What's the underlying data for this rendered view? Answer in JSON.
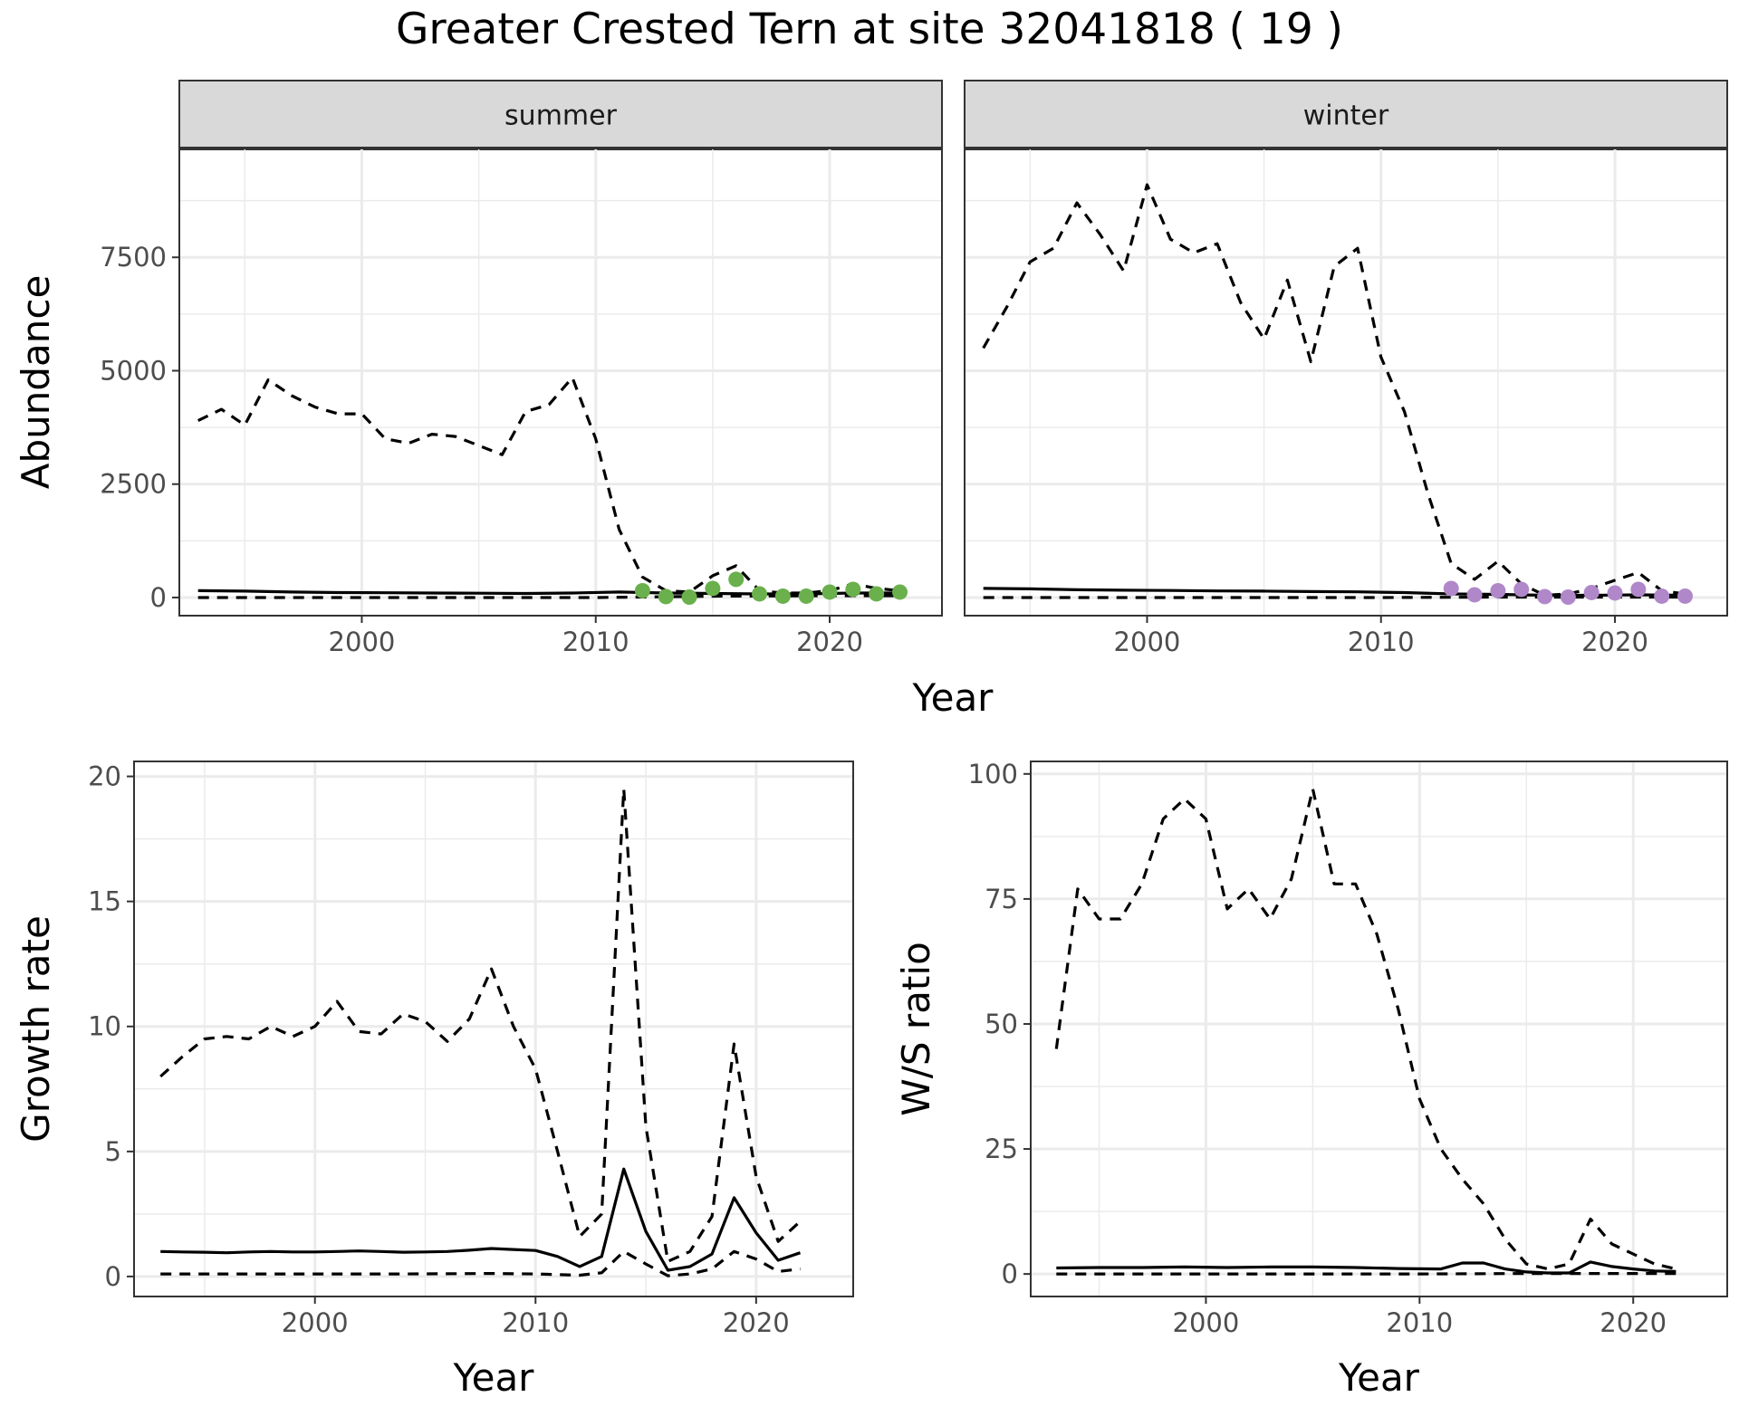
{
  "title": "Greater Crested Tern at site 32041818 ( 19 )",
  "colors": {
    "summer_points": "#6ab04c",
    "winter_points": "#b088c9",
    "lines": "#000000",
    "strip_bg": "#d9d9d9",
    "grid": "#ebebeb"
  },
  "chart_data": [
    {
      "type": "line",
      "panel": "summer",
      "strip": "summer",
      "xlabel": "Year",
      "ylabel": "Abundance",
      "xlim": [
        1992.2,
        2024.8
      ],
      "ylim": [
        -400,
        9900
      ],
      "x_ticks": [
        2000,
        2010,
        2020
      ],
      "y_ticks": [
        0,
        2500,
        5000,
        7500
      ],
      "grid": true,
      "series": [
        {
          "style": "solid",
          "x": [
            1993,
            1995,
            1997,
            1999,
            2001,
            2003,
            2005,
            2007,
            2009,
            2011,
            2013,
            2015,
            2017,
            2019,
            2021,
            2023
          ],
          "y": [
            150,
            140,
            120,
            110,
            105,
            100,
            95,
            90,
            100,
            120,
            100,
            90,
            80,
            80,
            100,
            100
          ]
        },
        {
          "style": "dashed",
          "x": [
            1993,
            1994,
            1995,
            1996,
            1997,
            1998,
            1999,
            2000,
            2001,
            2002,
            2003,
            2004,
            2005,
            2006,
            2007,
            2008,
            2009,
            2010,
            2011,
            2012,
            2013,
            2014,
            2015,
            2016,
            2017,
            2018,
            2019,
            2020,
            2021,
            2022,
            2023
          ],
          "y": [
            3900,
            4150,
            3800,
            4800,
            4450,
            4200,
            4050,
            4050,
            3500,
            3400,
            3600,
            3550,
            3350,
            3150,
            4100,
            4250,
            4850,
            3500,
            1500,
            450,
            150,
            120,
            480,
            700,
            150,
            100,
            100,
            150,
            300,
            200,
            150
          ]
        },
        {
          "style": "dashed",
          "x": [
            1993,
            2000,
            2010,
            2015,
            2020,
            2023
          ],
          "y": [
            0,
            0,
            0,
            30,
            40,
            40
          ]
        }
      ],
      "points": {
        "x": [
          2012,
          2013,
          2014,
          2015,
          2016,
          2017,
          2018,
          2019,
          2020,
          2021,
          2022,
          2023
        ],
        "y": [
          150,
          20,
          10,
          200,
          400,
          80,
          30,
          30,
          120,
          180,
          80,
          120
        ]
      }
    },
    {
      "type": "line",
      "panel": "winter",
      "strip": "winter",
      "xlabel": "Year",
      "ylabel": "",
      "xlim": [
        1992.2,
        2024.8
      ],
      "ylim": [
        -400,
        9900
      ],
      "x_ticks": [
        2000,
        2010,
        2020
      ],
      "y_ticks": [
        0,
        2500,
        5000,
        7500
      ],
      "grid": true,
      "series": [
        {
          "style": "solid",
          "x": [
            1993,
            1995,
            1997,
            1999,
            2001,
            2003,
            2005,
            2007,
            2009,
            2011,
            2013,
            2015,
            2017,
            2019,
            2021,
            2023
          ],
          "y": [
            200,
            190,
            170,
            160,
            155,
            145,
            140,
            130,
            125,
            110,
            80,
            70,
            50,
            50,
            60,
            50
          ]
        },
        {
          "style": "dashed",
          "x": [
            1993,
            1994,
            1995,
            1996,
            1997,
            1998,
            1999,
            2000,
            2001,
            2002,
            2003,
            2004,
            2005,
            2006,
            2007,
            2008,
            2009,
            2010,
            2011,
            2012,
            2013,
            2014,
            2015,
            2016,
            2017,
            2018,
            2019,
            2020,
            2021,
            2022,
            2023
          ],
          "y": [
            5500,
            6400,
            7400,
            7700,
            8700,
            8000,
            7200,
            9100,
            7900,
            7600,
            7800,
            6500,
            5700,
            7000,
            5200,
            7300,
            7700,
            5300,
            4100,
            2300,
            750,
            400,
            800,
            300,
            50,
            80,
            200,
            380,
            550,
            150,
            80
          ]
        },
        {
          "style": "dashed",
          "x": [
            1993,
            2000,
            2010,
            2015,
            2020,
            2023
          ],
          "y": [
            0,
            0,
            0,
            10,
            10,
            10
          ]
        }
      ],
      "points": {
        "x": [
          2013,
          2014,
          2015,
          2016,
          2017,
          2018,
          2019,
          2020,
          2021,
          2022,
          2023
        ],
        "y": [
          200,
          60,
          150,
          180,
          20,
          10,
          110,
          100,
          180,
          30,
          30
        ]
      }
    },
    {
      "type": "line",
      "panel": "growth",
      "xlabel": "Year",
      "ylabel": "Growth rate",
      "xlim": [
        1991.8,
        2024.4
      ],
      "ylim": [
        -0.8,
        20.6
      ],
      "x_ticks": [
        2000,
        2010,
        2020
      ],
      "y_ticks": [
        0,
        5,
        10,
        15,
        20
      ],
      "grid": true,
      "series": [
        {
          "style": "solid",
          "x": [
            1993,
            1994,
            1995,
            1996,
            1997,
            1998,
            1999,
            2000,
            2001,
            2002,
            2003,
            2004,
            2005,
            2006,
            2007,
            2008,
            2009,
            2010,
            2011,
            2012,
            2013,
            2014,
            2015,
            2016,
            2017,
            2018,
            2019,
            2020,
            2021,
            2022
          ],
          "y": [
            1.0,
            0.98,
            0.97,
            0.95,
            0.98,
            1.0,
            0.98,
            0.98,
            1.0,
            1.02,
            1.0,
            0.97,
            0.98,
            1.0,
            1.05,
            1.12,
            1.08,
            1.04,
            0.8,
            0.4,
            0.8,
            4.3,
            1.8,
            0.25,
            0.4,
            0.9,
            3.15,
            1.75,
            0.65,
            0.95
          ]
        },
        {
          "style": "dashed",
          "x": [
            1993,
            1994,
            1995,
            1996,
            1997,
            1998,
            1999,
            2000,
            2001,
            2002,
            2003,
            2004,
            2005,
            2006,
            2007,
            2008,
            2009,
            2010,
            2011,
            2012,
            2013,
            2014,
            2015,
            2016,
            2017,
            2018,
            2019,
            2020,
            2021,
            2022
          ],
          "y": [
            8.0,
            8.8,
            9.5,
            9.6,
            9.5,
            10.0,
            9.6,
            10.0,
            11.0,
            9.8,
            9.7,
            10.5,
            10.2,
            9.4,
            10.3,
            12.3,
            10.0,
            8.3,
            5.0,
            1.6,
            2.5,
            19.5,
            6.0,
            0.6,
            1.0,
            2.4,
            9.3,
            4.0,
            1.4,
            2.2
          ]
        },
        {
          "style": "dashed",
          "x": [
            1993,
            1996,
            2000,
            2004,
            2008,
            2010,
            2012,
            2013,
            2014,
            2015,
            2016,
            2017,
            2018,
            2019,
            2020,
            2021,
            2022
          ],
          "y": [
            0.1,
            0.1,
            0.1,
            0.1,
            0.12,
            0.1,
            0.05,
            0.15,
            1.0,
            0.5,
            0.03,
            0.1,
            0.3,
            1.0,
            0.7,
            0.2,
            0.3
          ]
        }
      ]
    },
    {
      "type": "line",
      "panel": "ratio",
      "xlabel": "Year",
      "ylabel": "W/S ratio",
      "xlim": [
        1991.8,
        2024.4
      ],
      "ylim": [
        -4.5,
        102.5
      ],
      "x_ticks": [
        2000,
        2010,
        2020
      ],
      "y_ticks": [
        0,
        25,
        50,
        75,
        100
      ],
      "grid": true,
      "series": [
        {
          "style": "solid",
          "x": [
            1993,
            1995,
            1997,
            1999,
            2001,
            2003,
            2005,
            2007,
            2009,
            2011,
            2012,
            2013,
            2014,
            2015,
            2016,
            2017,
            2018,
            2019,
            2020,
            2021,
            2022
          ],
          "y": [
            1.2,
            1.3,
            1.3,
            1.4,
            1.3,
            1.4,
            1.4,
            1.3,
            1.1,
            1.0,
            2.2,
            2.2,
            1.0,
            0.4,
            0.2,
            0.2,
            2.4,
            1.5,
            1.0,
            0.6,
            0.5
          ]
        },
        {
          "style": "dashed",
          "x": [
            1993,
            1994,
            1995,
            1996,
            1997,
            1998,
            1999,
            2000,
            2001,
            2002,
            2003,
            2004,
            2005,
            2006,
            2007,
            2008,
            2009,
            2010,
            2011,
            2012,
            2013,
            2014,
            2015,
            2016,
            2017,
            2018,
            2019,
            2020,
            2021,
            2022
          ],
          "y": [
            45,
            77,
            71,
            71,
            78,
            91,
            95,
            91,
            73,
            77,
            71,
            79,
            97,
            78,
            78,
            68,
            53,
            35,
            25,
            19,
            14,
            7,
            2,
            1,
            2,
            11,
            6,
            4,
            2,
            1
          ]
        },
        {
          "style": "dashed",
          "x": [
            1993,
            2000,
            2005,
            2010,
            2015,
            2020,
            2022
          ],
          "y": [
            0,
            0,
            0,
            0,
            0.1,
            0.1,
            0.1
          ]
        }
      ]
    }
  ]
}
